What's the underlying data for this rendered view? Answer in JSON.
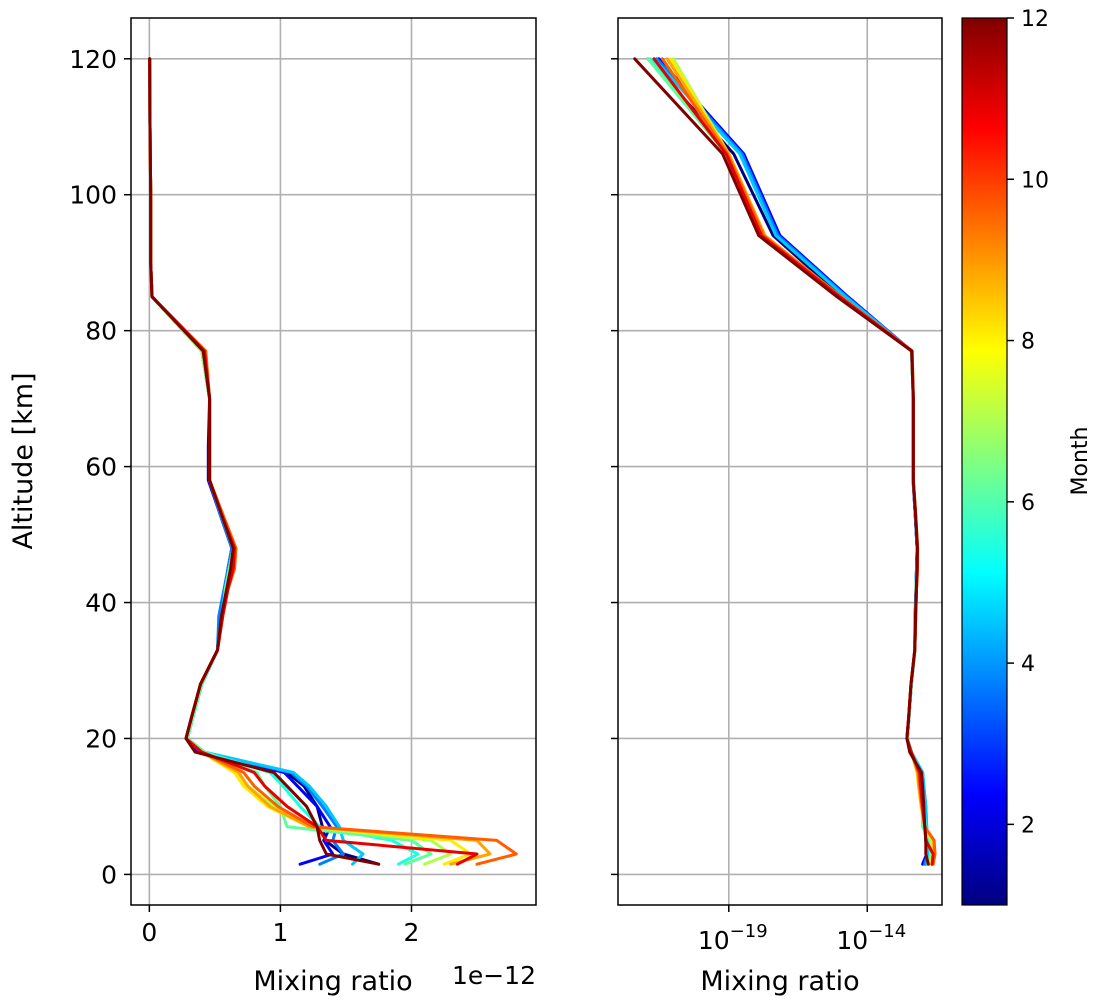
{
  "chart_data": [
    {
      "type": "line",
      "panel": "left",
      "xlabel": "Mixing ratio",
      "ylabel": "Altitude [km]",
      "x_offset_text": "1e−12",
      "xlim": [
        -0.14,
        2.95
      ],
      "ylim": [
        -4.5,
        126
      ],
      "x_ticks": [
        0,
        1,
        2
      ],
      "x_tick_labels": [
        "0",
        "1",
        "2"
      ],
      "y_ticks": [
        0,
        20,
        40,
        60,
        80,
        100,
        120
      ],
      "y_tick_labels": [
        "0",
        "20",
        "40",
        "60",
        "80",
        "100",
        "120"
      ],
      "grid": true,
      "altitudes": [
        1.5,
        3,
        5,
        7,
        10,
        13,
        15,
        18,
        20,
        23,
        28,
        33,
        38,
        42,
        45,
        48,
        53,
        58,
        63,
        70,
        77,
        85,
        90,
        100,
        110,
        120
      ],
      "series": [
        {
          "month": 1,
          "color": "#00007f",
          "values": [
            1.75,
            1.48,
            1.34,
            1.32,
            1.28,
            1.18,
            1.05,
            0.38,
            0.29,
            0.33,
            0.4,
            0.52,
            0.54,
            0.58,
            0.6,
            0.63,
            0.54,
            0.46,
            0.46,
            0.46,
            0.4,
            0.02,
            0.01,
            0.01,
            0.005,
            0.003
          ]
        },
        {
          "month": 2,
          "color": "#0000ff",
          "values": [
            1.15,
            1.4,
            1.33,
            1.38,
            1.28,
            1.13,
            1.03,
            0.38,
            0.29,
            0.33,
            0.4,
            0.52,
            0.54,
            0.58,
            0.6,
            0.63,
            0.54,
            0.45,
            0.45,
            0.46,
            0.4,
            0.02,
            0.01,
            0.01,
            0.005,
            0.003
          ]
        },
        {
          "month": 3,
          "color": "#0080ff",
          "values": [
            1.3,
            1.48,
            1.4,
            1.43,
            1.32,
            1.2,
            1.08,
            0.4,
            0.29,
            0.33,
            0.4,
            0.52,
            0.53,
            0.57,
            0.6,
            0.63,
            0.54,
            0.46,
            0.46,
            0.46,
            0.4,
            0.02,
            0.01,
            0.01,
            0.005,
            0.003
          ]
        },
        {
          "month": 4,
          "color": "#00c8ff",
          "values": [
            1.55,
            1.63,
            1.48,
            1.45,
            1.35,
            1.22,
            1.1,
            0.42,
            0.29,
            0.33,
            0.4,
            0.52,
            0.55,
            0.58,
            0.61,
            0.64,
            0.55,
            0.46,
            0.46,
            0.46,
            0.4,
            0.02,
            0.01,
            0.01,
            0.005,
            0.003
          ]
        },
        {
          "month": 5,
          "color": "#1affe0",
          "values": [
            1.9,
            2.05,
            1.85,
            1.3,
            1.15,
            1.02,
            0.92,
            0.42,
            0.29,
            0.33,
            0.4,
            0.52,
            0.56,
            0.58,
            0.61,
            0.64,
            0.55,
            0.46,
            0.46,
            0.46,
            0.4,
            0.02,
            0.01,
            0.01,
            0.005,
            0.003
          ]
        },
        {
          "month": 6,
          "color": "#5cff9a",
          "values": [
            1.95,
            2.15,
            2.0,
            1.05,
            1.0,
            0.88,
            0.82,
            0.42,
            0.29,
            0.33,
            0.4,
            0.52,
            0.56,
            0.58,
            0.61,
            0.64,
            0.55,
            0.46,
            0.46,
            0.46,
            0.4,
            0.02,
            0.01,
            0.01,
            0.005,
            0.003
          ]
        },
        {
          "month": 7,
          "color": "#b0ff47",
          "values": [
            2.1,
            2.3,
            2.15,
            1.22,
            0.95,
            0.75,
            0.68,
            0.4,
            0.28,
            0.32,
            0.39,
            0.52,
            0.56,
            0.59,
            0.62,
            0.65,
            0.55,
            0.46,
            0.46,
            0.46,
            0.4,
            0.02,
            0.01,
            0.01,
            0.005,
            0.003
          ]
        },
        {
          "month": 8,
          "color": "#ffea00",
          "values": [
            2.25,
            2.45,
            2.3,
            1.22,
            0.9,
            0.72,
            0.65,
            0.4,
            0.28,
            0.32,
            0.39,
            0.52,
            0.56,
            0.6,
            0.64,
            0.66,
            0.56,
            0.46,
            0.46,
            0.46,
            0.42,
            0.02,
            0.01,
            0.01,
            0.005,
            0.003
          ]
        },
        {
          "month": 9,
          "color": "#ffa400",
          "values": [
            2.3,
            2.6,
            2.5,
            1.22,
            0.92,
            0.75,
            0.68,
            0.4,
            0.28,
            0.32,
            0.39,
            0.52,
            0.56,
            0.6,
            0.65,
            0.66,
            0.56,
            0.46,
            0.46,
            0.46,
            0.43,
            0.02,
            0.01,
            0.01,
            0.005,
            0.003
          ]
        },
        {
          "month": 10,
          "color": "#ff5e00",
          "values": [
            2.5,
            2.8,
            2.65,
            1.25,
            0.98,
            0.8,
            0.72,
            0.4,
            0.28,
            0.32,
            0.39,
            0.52,
            0.56,
            0.6,
            0.65,
            0.66,
            0.56,
            0.46,
            0.46,
            0.46,
            0.43,
            0.02,
            0.01,
            0.01,
            0.005,
            0.003
          ]
        },
        {
          "month": 11,
          "color": "#e80000",
          "values": [
            2.35,
            2.5,
            1.35,
            1.28,
            1.05,
            0.88,
            0.8,
            0.4,
            0.28,
            0.32,
            0.39,
            0.52,
            0.56,
            0.6,
            0.64,
            0.65,
            0.55,
            0.46,
            0.46,
            0.46,
            0.42,
            0.02,
            0.01,
            0.01,
            0.005,
            0.003
          ]
        },
        {
          "month": 12,
          "color": "#800000",
          "values": [
            1.75,
            1.35,
            1.3,
            1.28,
            1.2,
            1.05,
            0.95,
            0.35,
            0.28,
            0.32,
            0.39,
            0.52,
            0.55,
            0.59,
            0.62,
            0.64,
            0.55,
            0.46,
            0.46,
            0.46,
            0.41,
            0.02,
            0.01,
            0.01,
            0.005,
            0.003
          ]
        }
      ]
    },
    {
      "type": "line",
      "panel": "right",
      "xlabel": "Mixing ratio",
      "x_scale": "log",
      "xlim": [
        1e-23,
        5e-12
      ],
      "ylim": [
        -4.5,
        126
      ],
      "x_ticks": [
        1e-19,
        1e-14
      ],
      "x_tick_labels": [
        {
          "base": "10",
          "exp": "−19"
        },
        {
          "base": "10",
          "exp": "−14"
        }
      ],
      "y_ticks": [
        0,
        20,
        40,
        60,
        80,
        100,
        120
      ],
      "grid": true,
      "altitudes": [
        1.5,
        3,
        5,
        7,
        10,
        13,
        15,
        18,
        20,
        23,
        28,
        33,
        38,
        42,
        45,
        48,
        53,
        58,
        63,
        70,
        77,
        85,
        94,
        106,
        120
      ],
      "series": [
        {
          "month": 1,
          "color": "#00007f",
          "values": [
            1.3e-12,
            1.5e-12,
            1.3e-12,
            1.3e-12,
            1.2e-12,
            1e-12,
            9e-13,
            3.5e-13,
            2.8e-13,
            3.2e-13,
            3.9e-13,
            5.2e-13,
            5.4e-13,
            5.8e-13,
            6e-13,
            6.3e-13,
            5.4e-13,
            4.6e-13,
            4.6e-13,
            4.6e-13,
            4e-13,
            1.2e-15,
            4e-18,
            1.5e-19,
            1.2e-22
          ]
        },
        {
          "month": 2,
          "color": "#0000ff",
          "values": [
            1e-12,
            1.4e-12,
            1.3e-12,
            1.3e-12,
            1.2e-12,
            1e-12,
            9e-13,
            3.5e-13,
            2.8e-13,
            3.2e-13,
            3.9e-13,
            5.2e-13,
            5.4e-13,
            5.8e-13,
            6e-13,
            6.3e-13,
            5.4e-13,
            4.5e-13,
            4.5e-13,
            4.6e-13,
            4e-13,
            2e-15,
            7e-18,
            3.5e-19,
            3e-22
          ]
        },
        {
          "month": 3,
          "color": "#0080ff",
          "values": [
            1.2e-12,
            1.5e-12,
            1.4e-12,
            1.4e-12,
            1.3e-12,
            1.1e-12,
            1e-12,
            3.8e-13,
            2.8e-13,
            3.2e-13,
            3.9e-13,
            5.2e-13,
            5.3e-13,
            5.7e-13,
            6e-13,
            6.3e-13,
            5.4e-13,
            4.6e-13,
            4.6e-13,
            4.6e-13,
            4e-13,
            1.8e-15,
            6e-18,
            3e-19,
            2.5e-22
          ]
        },
        {
          "month": 4,
          "color": "#00c8ff",
          "values": [
            1.4e-12,
            1.6e-12,
            1.5e-12,
            1.4e-12,
            1.3e-12,
            1.1e-12,
            1e-12,
            4e-13,
            2.8e-13,
            3.2e-13,
            3.9e-13,
            5.2e-13,
            5.5e-13,
            5.8e-13,
            6.1e-13,
            6.4e-13,
            5.5e-13,
            4.6e-13,
            4.6e-13,
            4.6e-13,
            4e-13,
            1.6e-15,
            5e-18,
            2.5e-19,
            2e-22
          ]
        },
        {
          "month": 5,
          "color": "#1affe0",
          "values": [
            1.6e-12,
            1.9e-12,
            1.8e-12,
            1.3e-12,
            1.1e-12,
            9.5e-13,
            8.5e-13,
            4e-13,
            2.8e-13,
            3.2e-13,
            3.9e-13,
            5.2e-13,
            5.6e-13,
            5.8e-13,
            6.1e-13,
            6.4e-13,
            5.5e-13,
            4.6e-13,
            4.6e-13,
            4.6e-13,
            4e-13,
            1e-15,
            2e-18,
            1e-19,
            1.5e-22
          ]
        },
        {
          "month": 6,
          "color": "#5cff9a",
          "values": [
            1.7e-12,
            2e-12,
            1.9e-12,
            1e-12,
            9.5e-13,
            8.5e-13,
            7.8e-13,
            4e-13,
            2.8e-13,
            3.2e-13,
            3.9e-13,
            5.2e-13,
            5.6e-13,
            5.8e-13,
            6.1e-13,
            6.4e-13,
            5.5e-13,
            4.6e-13,
            4.6e-13,
            4.6e-13,
            4e-13,
            8e-16,
            1.2e-18,
            8e-20,
            1.2e-22
          ]
        },
        {
          "month": 7,
          "color": "#b0ff47",
          "values": [
            1.9e-12,
            2.2e-12,
            2.1e-12,
            1.2e-12,
            9e-13,
            7.2e-13,
            6.5e-13,
            3.9e-13,
            2.7e-13,
            3.1e-13,
            3.8e-13,
            5.2e-13,
            5.6e-13,
            5.9e-13,
            6.2e-13,
            6.5e-13,
            5.5e-13,
            4.6e-13,
            4.6e-13,
            4.6e-13,
            4e-13,
            1e-15,
            1.8e-18,
            1e-19,
            1e-21
          ]
        },
        {
          "month": 8,
          "color": "#ffea00",
          "values": [
            2.1e-12,
            2.4e-12,
            2.3e-12,
            1.2e-12,
            8.8e-13,
            7e-13,
            6.3e-13,
            3.9e-13,
            2.7e-13,
            3.1e-13,
            3.8e-13,
            5.2e-13,
            5.6e-13,
            6e-13,
            6.4e-13,
            6.6e-13,
            5.6e-13,
            4.6e-13,
            4.6e-13,
            4.6e-13,
            4.1e-13,
            1.1e-15,
            2e-18,
            1e-19,
            8e-22
          ]
        },
        {
          "month": 9,
          "color": "#ffa400",
          "values": [
            2.2e-12,
            2.6e-12,
            2.5e-12,
            1.2e-12,
            9e-13,
            7.3e-13,
            6.6e-13,
            3.9e-13,
            2.7e-13,
            3.1e-13,
            3.8e-13,
            5.2e-13,
            5.6e-13,
            6e-13,
            6.5e-13,
            6.6e-13,
            5.6e-13,
            4.6e-13,
            4.6e-13,
            4.6e-13,
            4.2e-13,
            1.1e-15,
            2e-18,
            1e-19,
            6e-22
          ]
        },
        {
          "month": 10,
          "color": "#ff5e00",
          "values": [
            2.4e-12,
            2.8e-12,
            2.6e-12,
            1.2e-12,
            9.5e-13,
            7.8e-13,
            7e-13,
            3.9e-13,
            2.7e-13,
            3.1e-13,
            3.8e-13,
            5.2e-13,
            5.6e-13,
            6e-13,
            6.5e-13,
            6.6e-13,
            5.6e-13,
            4.6e-13,
            4.6e-13,
            4.6e-13,
            4.2e-13,
            1.1e-15,
            1.8e-18,
            9e-20,
            4e-22
          ]
        },
        {
          "month": 11,
          "color": "#e80000",
          "values": [
            2.2e-12,
            2.4e-12,
            1.3e-12,
            1.2e-12,
            1e-12,
            8.5e-13,
            7.8e-13,
            3.9e-13,
            2.7e-13,
            3.1e-13,
            3.8e-13,
            5.2e-13,
            5.6e-13,
            6e-13,
            6.4e-13,
            6.5e-13,
            5.5e-13,
            4.6e-13,
            4.6e-13,
            4.6e-13,
            4.1e-13,
            1e-15,
            1.5e-18,
            8e-20,
            2e-22
          ]
        },
        {
          "month": 12,
          "color": "#800000",
          "values": [
            1.6e-12,
            1.3e-12,
            1.3e-12,
            1.2e-12,
            1.1e-12,
            1e-12,
            9e-13,
            3.4e-13,
            2.7e-13,
            3.1e-13,
            3.8e-13,
            5.2e-13,
            5.5e-13,
            5.9e-13,
            6.2e-13,
            6.4e-13,
            5.5e-13,
            4.6e-13,
            4.6e-13,
            4.6e-13,
            4e-13,
            8e-16,
            1.2e-18,
            6e-20,
            4e-23
          ]
        }
      ]
    }
  ],
  "colorbar": {
    "label": "Month",
    "range": [
      1,
      12
    ],
    "ticks": [
      2,
      4,
      6,
      8,
      10,
      12
    ],
    "tick_labels": [
      "2",
      "4",
      "6",
      "8",
      "10",
      "12"
    ],
    "colormap": "jet",
    "stops": [
      "#00007f",
      "#0000ff",
      "#0080ff",
      "#00ffff",
      "#80ff80",
      "#ffff00",
      "#ff8000",
      "#ff0000",
      "#800000"
    ]
  }
}
